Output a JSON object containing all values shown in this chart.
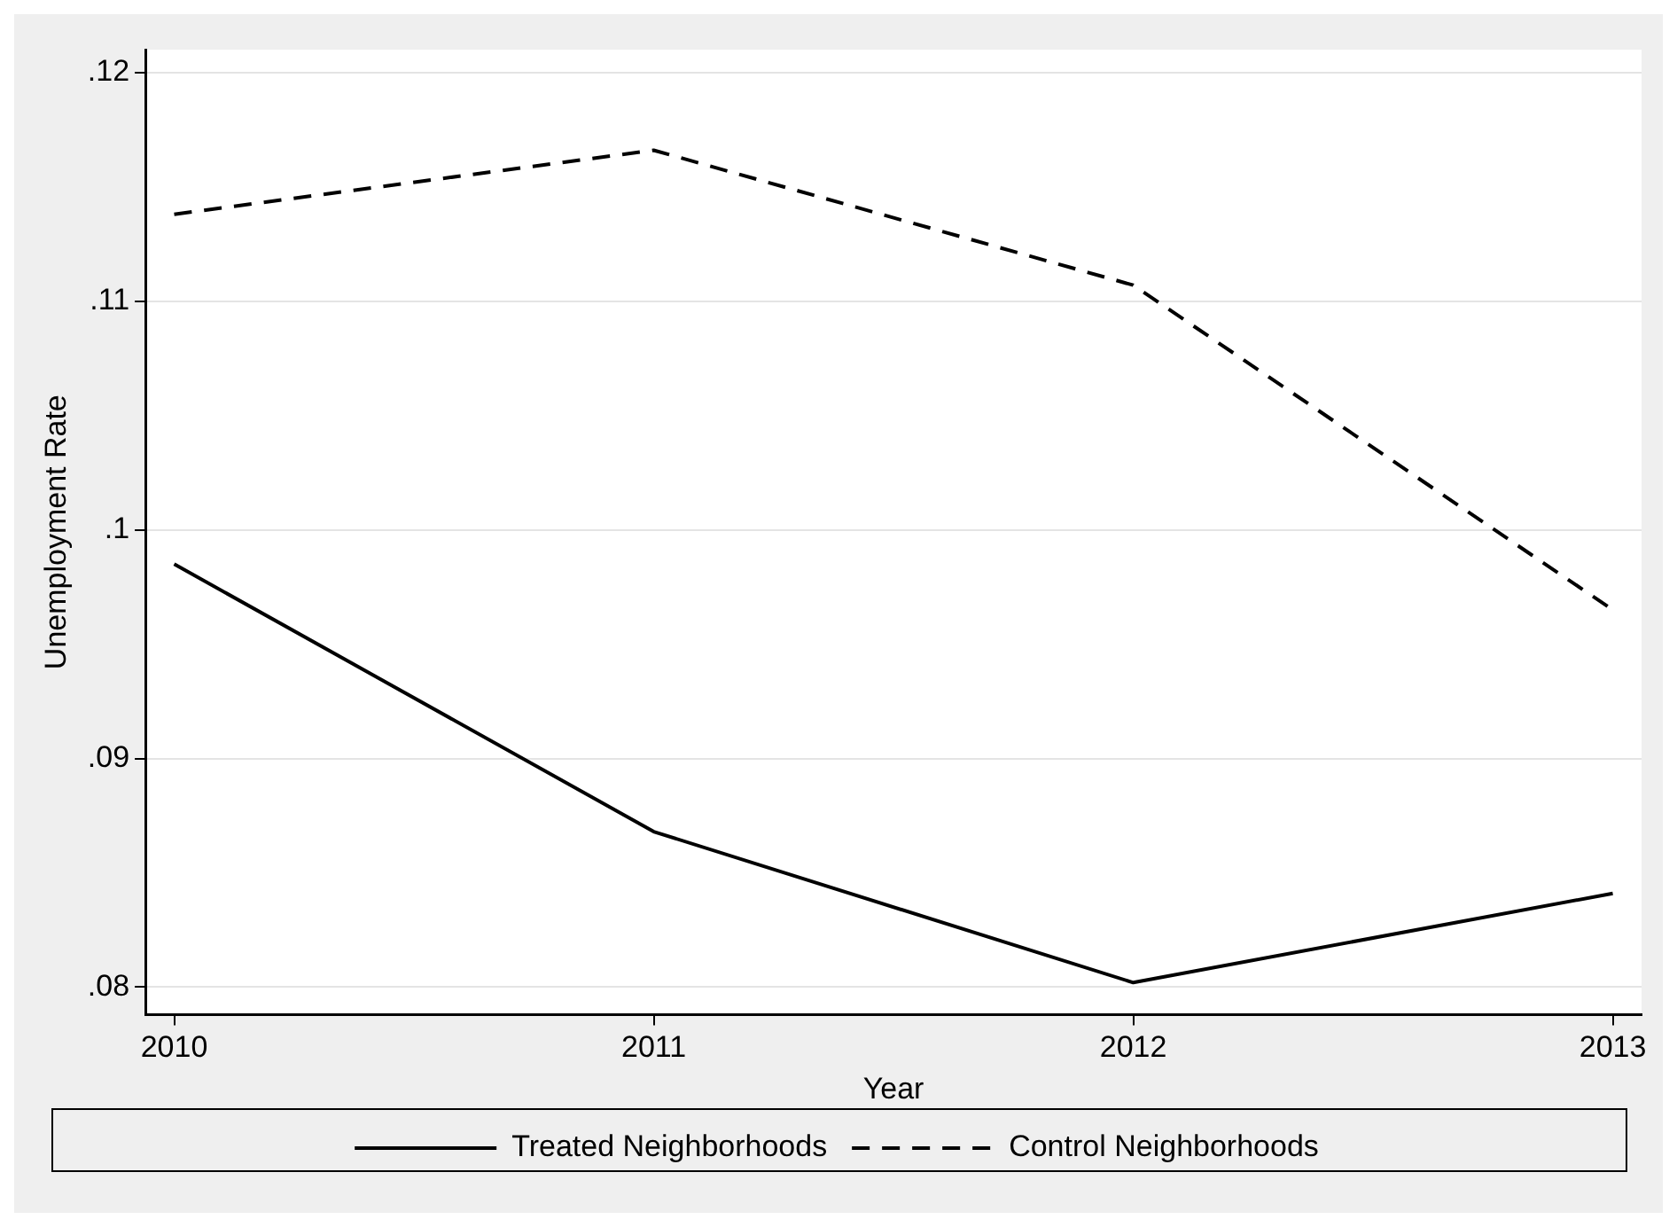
{
  "chart_data": {
    "type": "line",
    "xlabel": "Year",
    "ylabel": "Unemployment Rate",
    "x": [
      2010,
      2011,
      2012,
      2013
    ],
    "series": [
      {
        "name": "Treated Neighborhoods",
        "color": "#000000",
        "line_style": "solid",
        "values": [
          0.0985,
          0.0868,
          0.0802,
          0.0841
        ]
      },
      {
        "name": "Control Neighborhoods",
        "color": "#000000",
        "line_style": "dashed",
        "values": [
          0.1138,
          0.1166,
          0.1107,
          0.0965
        ]
      }
    ],
    "xlim": [
      2009.94,
      2013.06
    ],
    "xticks": [
      2010,
      2011,
      2012,
      2013
    ],
    "ylim": [
      0.0788,
      0.121
    ],
    "yticks": [
      {
        "value": 0.08,
        "label": ".08"
      },
      {
        "value": 0.09,
        "label": ".09"
      },
      {
        "value": 0.1,
        "label": ".1"
      },
      {
        "value": 0.11,
        "label": ".11"
      },
      {
        "value": 0.12,
        "label": ".12"
      }
    ],
    "grid": "y",
    "legend": "bottom",
    "marker": "none"
  }
}
